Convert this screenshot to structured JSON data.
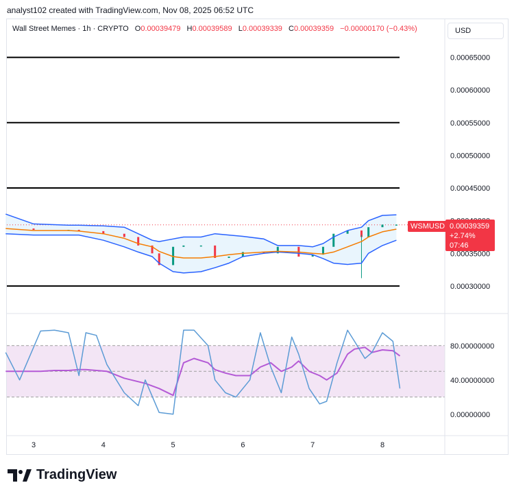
{
  "attribution": "analyst102 created with TradingView.com, Nov 08, 2025 06:52 UTC",
  "header": {
    "symbol": "Wall Street Memes · 1h · CRYPTO",
    "open_label": "O",
    "open": "0.00039479",
    "high_label": "H",
    "high": "0.00039589",
    "low_label": "L",
    "low": "0.00039339",
    "close_label": "C",
    "close": "0.00039359",
    "change": "−0.00000170 (−0.43%)"
  },
  "currency": "USD",
  "last_price": {
    "symbol": "WSMUSD",
    "price": "0.00039359",
    "change_pct": "+2.74%",
    "countdown": "07:46"
  },
  "logo_text": "TradingView",
  "colors": {
    "bollinger_band": "#2962ff",
    "basis": "#f57c00",
    "band_fill": "#e3f2fd",
    "up_candle": "#089981",
    "down_candle": "#f23645",
    "stoch_k": "#5b9bd5",
    "stoch_d": "#b45ad6",
    "stoch_band_fill": "#f3e5f5",
    "horizontal_lines": "#000000",
    "badge": "#f23645"
  },
  "chart_data": [
    {
      "type": "candlestick",
      "x_tick_labels": [
        "3",
        "4",
        "5",
        "6",
        "7",
        "8"
      ],
      "y_tick_labels": [
        "0.00065000",
        "0.00060000",
        "0.00055000",
        "0.00050000",
        "0.00045000",
        "0.00040000",
        "0.00035000",
        "0.00030000"
      ],
      "ylim": [
        0.00026,
        0.00068
      ],
      "horizontal_lines": [
        0.00065,
        0.00055,
        0.00045,
        0.0003
      ],
      "last_price_line": 0.00039359,
      "x_positions": [
        2.6,
        3.0,
        3.5,
        3.65,
        4.0,
        4.3,
        4.5,
        4.7,
        4.8,
        5.0,
        5.15,
        5.4,
        5.6,
        5.8,
        6.0,
        6.3,
        6.5,
        6.8,
        7.0,
        7.15,
        7.3,
        7.5,
        7.7,
        7.8,
        8.0,
        8.2
      ],
      "series": [
        {
          "name": "Upper band",
          "values": [
            0.00041,
            0.000395,
            0.000393,
            0.000393,
            0.000392,
            0.00039,
            0.00038,
            0.00037,
            0.000368,
            0.000372,
            0.000375,
            0.000375,
            0.00038,
            0.000378,
            0.000376,
            0.000372,
            0.000362,
            0.000362,
            0.00036,
            0.000365,
            0.000375,
            0.000385,
            0.00039,
            0.0004,
            0.000408,
            0.000409
          ]
        },
        {
          "name": "Basis",
          "values": [
            0.000388,
            0.000385,
            0.000385,
            0.000384,
            0.00038,
            0.000373,
            0.000365,
            0.00036,
            0.000353,
            0.000345,
            0.000343,
            0.000343,
            0.000345,
            0.000348,
            0.00035,
            0.000352,
            0.000353,
            0.000352,
            0.00035,
            0.000349,
            0.000352,
            0.00036,
            0.000368,
            0.000375,
            0.000383,
            0.000387
          ]
        },
        {
          "name": "Lower band",
          "values": [
            0.00038,
            0.000378,
            0.000378,
            0.000378,
            0.00037,
            0.00036,
            0.000352,
            0.000345,
            0.000335,
            0.000322,
            0.00032,
            0.000322,
            0.000328,
            0.000335,
            0.000345,
            0.00035,
            0.000352,
            0.00035,
            0.000348,
            0.000342,
            0.000335,
            0.000333,
            0.000335,
            0.00035,
            0.000362,
            0.00037
          ]
        },
        {
          "name": "Close",
          "values": [
            0.000388,
            0.000386,
            0.000386,
            0.000384,
            0.00038,
            0.000375,
            0.000362,
            0.00035,
            0.000332,
            0.00036,
            0.000362,
            0.000362,
            0.000343,
            0.000345,
            0.000352,
            0.00035,
            0.00036,
            0.000345,
            0.000348,
            0.00036,
            0.00038,
            0.000385,
            0.000375,
            0.00039,
            0.000394,
            0.000394
          ]
        }
      ]
    },
    {
      "type": "line",
      "y_tick_labels": [
        "80.00000000",
        "40.00000000",
        "0.00000000"
      ],
      "ylim": [
        -25,
        115
      ],
      "band": [
        20,
        80
      ],
      "guide_lines": [
        20,
        50,
        80
      ],
      "x_positions": [
        2.6,
        2.8,
        3.1,
        3.3,
        3.5,
        3.65,
        3.75,
        3.9,
        4.05,
        4.3,
        4.5,
        4.6,
        4.8,
        5.0,
        5.15,
        5.3,
        5.5,
        5.6,
        5.75,
        5.9,
        6.1,
        6.25,
        6.4,
        6.55,
        6.7,
        6.8,
        6.95,
        7.1,
        7.2,
        7.35,
        7.5,
        7.6,
        7.75,
        7.85,
        8.0,
        8.15,
        8.25
      ],
      "series": [
        {
          "name": "%K",
          "values": [
            72,
            40,
            97,
            98,
            95,
            45,
            95,
            92,
            58,
            25,
            10,
            40,
            2,
            0,
            98,
            98,
            80,
            40,
            25,
            20,
            40,
            95,
            55,
            25,
            90,
            70,
            30,
            12,
            15,
            60,
            98,
            85,
            65,
            72,
            95,
            85,
            30
          ]
        },
        {
          "name": "%D",
          "values": [
            50,
            50,
            50,
            51,
            51,
            52,
            52,
            51,
            50,
            42,
            38,
            36,
            30,
            22,
            60,
            65,
            60,
            52,
            48,
            45,
            45,
            55,
            60,
            50,
            55,
            62,
            50,
            45,
            40,
            48,
            70,
            76,
            78,
            72,
            75,
            74,
            68
          ]
        }
      ]
    }
  ]
}
